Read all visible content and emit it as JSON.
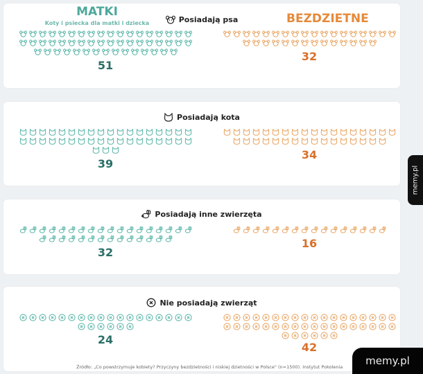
{
  "headers": {
    "left_title": "MATKI",
    "left_subtitle": "Koty i psiecka dla matki i dziecka",
    "right_title": "BEZDZIETNE"
  },
  "colors": {
    "matki": "#4fa89c",
    "matki_number": "#2a6f66",
    "bezdzietne": "#e58a3a",
    "bezdzietne_number": "#d9702a"
  },
  "sections": [
    {
      "title": "Posiadają psa",
      "icon": "dog-icon",
      "matki": "51",
      "bezdzietne": "32"
    },
    {
      "title": "Posiadają kota",
      "icon": "cat-icon",
      "matki": "39",
      "bezdzietne": "34"
    },
    {
      "title": "Posiadają inne zwierzęta",
      "icon": "rabbit-icon",
      "matki": "32",
      "bezdzietne": "16"
    },
    {
      "title": "Nie posiadają zwierząt",
      "icon": "x-circle-icon",
      "matki": "24",
      "bezdzietne": "42"
    }
  ],
  "source": "Źródło: „Co powstrzymuje kobiety? Przyczyny bezdzietności i niskiej dzietności w Polsce\" (n=1500). Instytut Pokolenia",
  "watermark": {
    "side": "memy.pl",
    "bottom": "memy.pl"
  },
  "chart_data": {
    "type": "bar",
    "title": "Posiadanie zwierząt: matki vs bezdzietne",
    "categories": [
      "Posiadają psa",
      "Posiadają kota",
      "Posiadają inne zwierzęta",
      "Nie posiadają zwierząt"
    ],
    "series": [
      {
        "name": "MATKI",
        "values": [
          51,
          39,
          32,
          24
        ]
      },
      {
        "name": "BEZDZIETNE",
        "values": [
          32,
          34,
          16,
          42
        ]
      }
    ],
    "xlabel": "",
    "ylabel": "%",
    "ylim": [
      0,
      100
    ]
  }
}
